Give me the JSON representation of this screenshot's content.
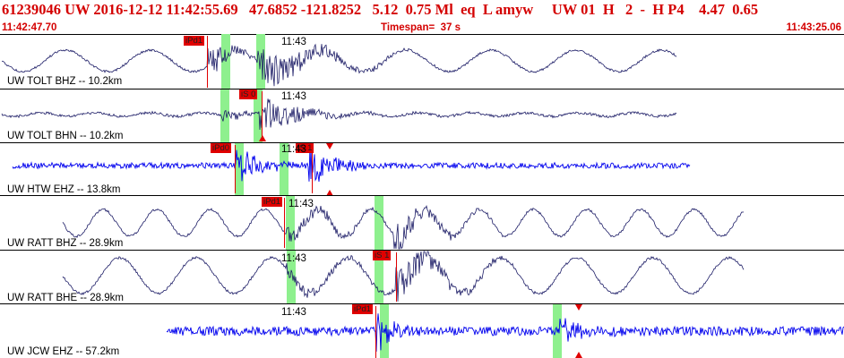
{
  "header": {
    "title": "61239046 UW 2016-12-12 11:42:55.69   47.6852 -121.8252   5.12  0.75 Ml  eq  L amyw     UW 01  H   2  -  H P4    4.47  0.65",
    "start_time": "11:42:47.70",
    "timespan": "Timespan=  37 s",
    "end_time": "11:43:25.06"
  },
  "time_marker": "11:43",
  "colors": {
    "header_text": "#d40000",
    "trace_broadband": "#1c1c66",
    "trace_short_period": "#0000ee",
    "pick": "#e00000",
    "window": "#8ef08e"
  },
  "traces": [
    {
      "label": "UW TOLT BHZ -- 10.2km",
      "picks": [
        "iPd1"
      ]
    },
    {
      "label": "UW TOLT BHN -- 10.2km",
      "picks": [
        "iS 0"
      ]
    },
    {
      "label": "UW HTW EHZ -- 13.8km",
      "picks": [
        "iPd0",
        "iS 1"
      ]
    },
    {
      "label": "UW RATT BHZ -- 28.9km",
      "picks": [
        "iPd1"
      ]
    },
    {
      "label": "UW RATT BHE -- 28.9km",
      "picks": [
        "iS 1"
      ]
    },
    {
      "label": "UW JCW EHZ -- 57.2km",
      "picks": [
        "iPd1"
      ]
    }
  ]
}
